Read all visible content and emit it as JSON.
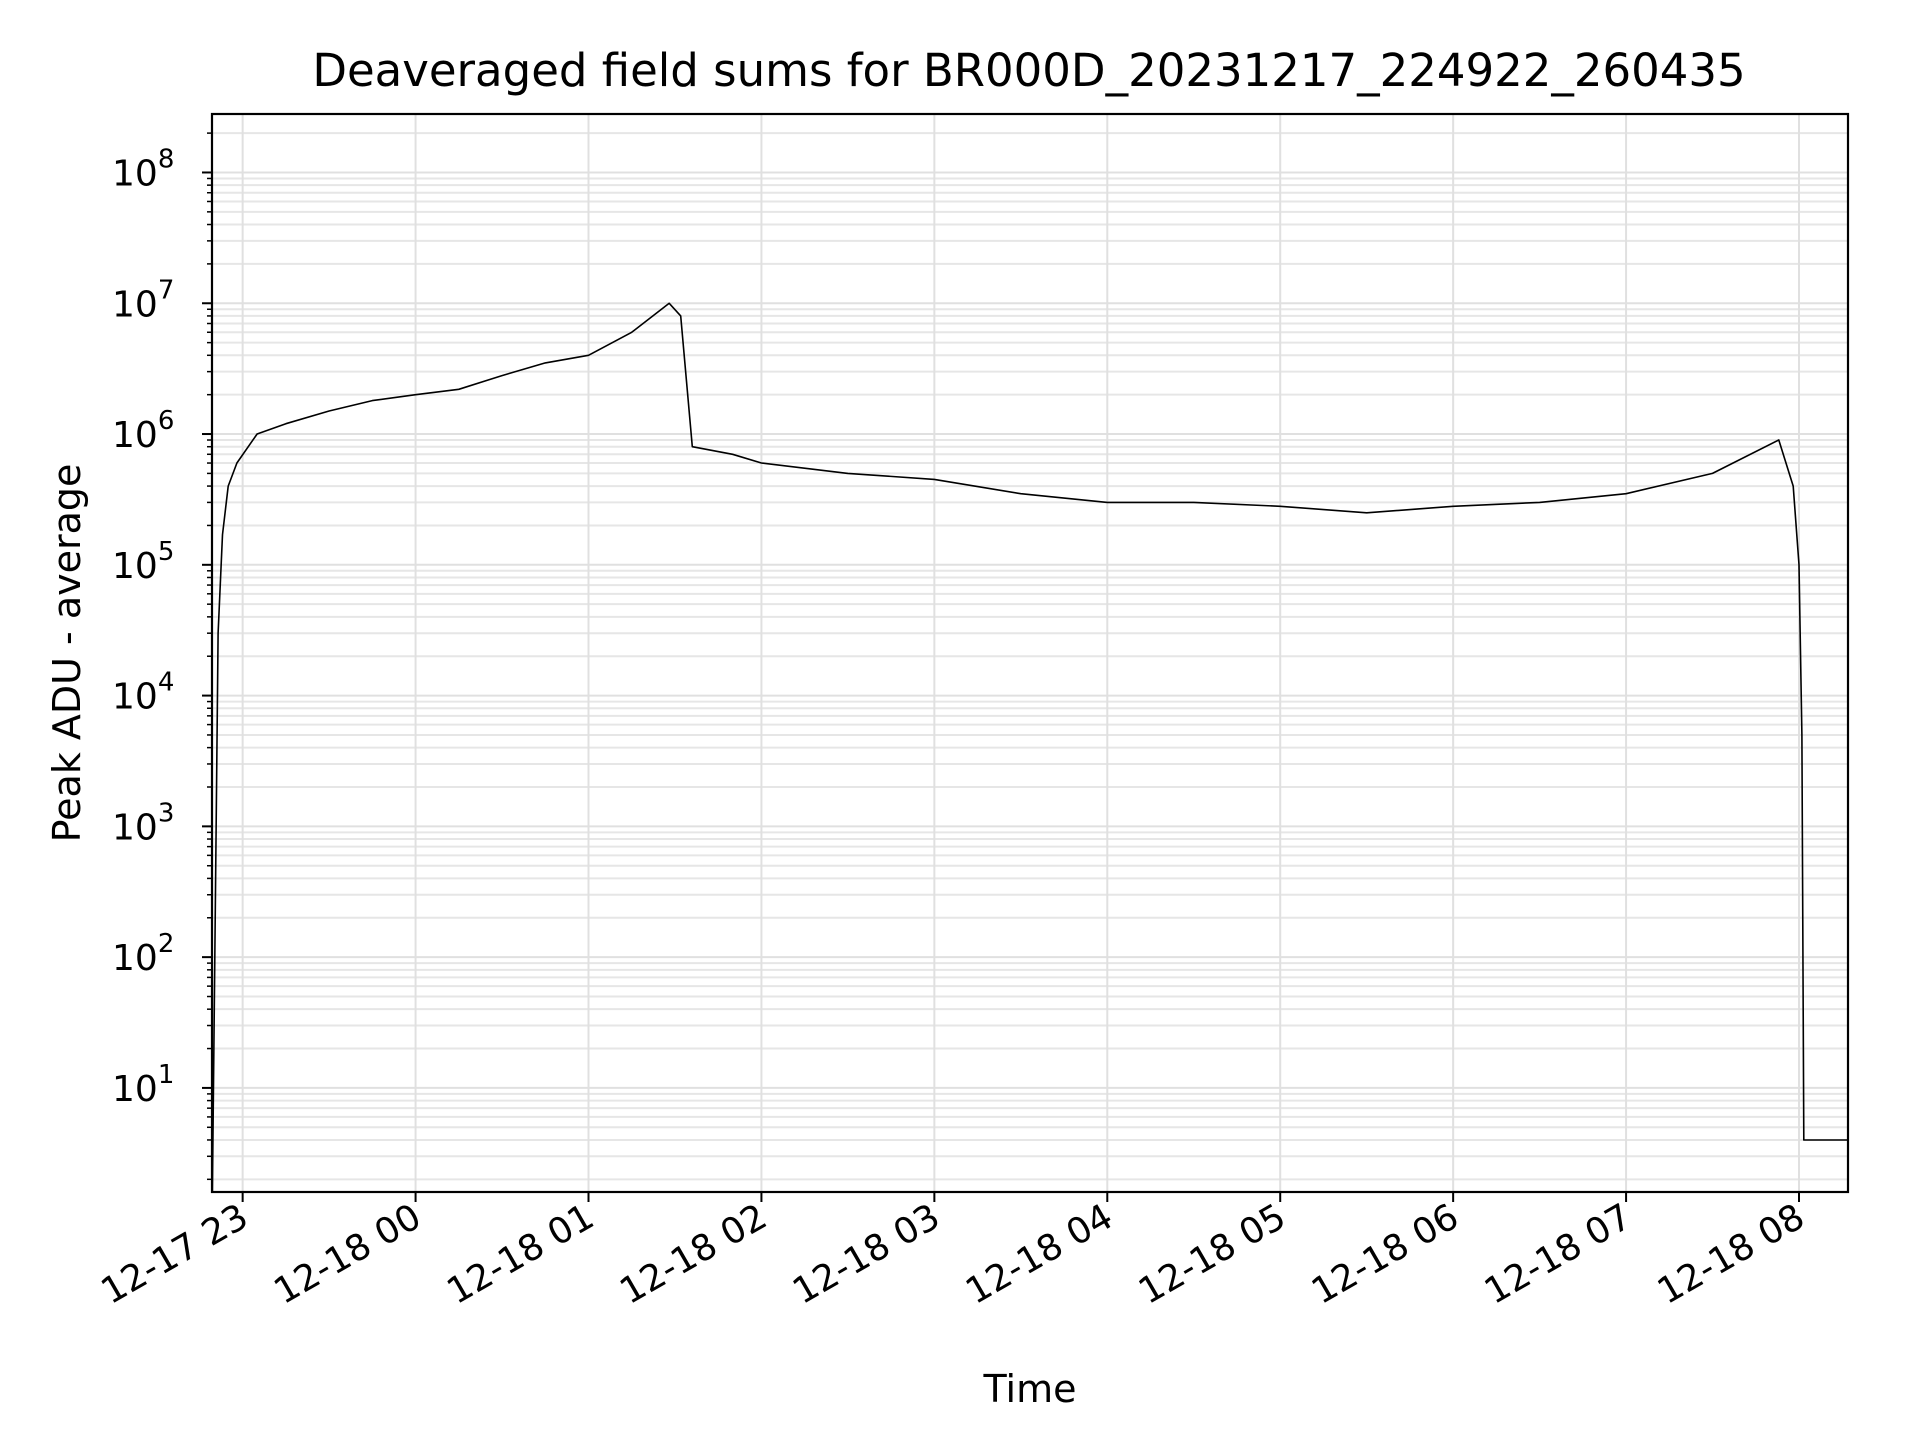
{
  "chart_data": {
    "type": "line",
    "title": "Deaveraged field sums for BR000D_20231217_224922_260435",
    "xlabel": "Time",
    "ylabel": "Peak ADU - average",
    "yscale": "log",
    "ylim": [
      1.6,
      280000000
    ],
    "xlim": [
      "2023-12-17 22:49:22",
      "2023-12-18 08:17:00"
    ],
    "grid": "major and minor",
    "line_color": "#000000",
    "xticks": [
      {
        "label": "12-17 23",
        "t": "2023-12-17 23:00"
      },
      {
        "label": "12-18 00",
        "t": "2023-12-18 00:00"
      },
      {
        "label": "12-18 01",
        "t": "2023-12-18 01:00"
      },
      {
        "label": "12-18 02",
        "t": "2023-12-18 02:00"
      },
      {
        "label": "12-18 03",
        "t": "2023-12-18 03:00"
      },
      {
        "label": "12-18 04",
        "t": "2023-12-18 04:00"
      },
      {
        "label": "12-18 05",
        "t": "2023-12-18 05:00"
      },
      {
        "label": "12-18 06",
        "t": "2023-12-18 06:00"
      },
      {
        "label": "12-18 07",
        "t": "2023-12-18 07:00"
      },
      {
        "label": "12-18 08",
        "t": "2023-12-18 08:00"
      }
    ],
    "yticks": [
      {
        "base": "10",
        "exp": "1",
        "value": 10
      },
      {
        "base": "10",
        "exp": "2",
        "value": 100
      },
      {
        "base": "10",
        "exp": "3",
        "value": 1000
      },
      {
        "base": "10",
        "exp": "4",
        "value": 10000
      },
      {
        "base": "10",
        "exp": "5",
        "value": 100000
      },
      {
        "base": "10",
        "exp": "6",
        "value": 1000000
      },
      {
        "base": "10",
        "exp": "7",
        "value": 10000000
      },
      {
        "base": "10",
        "exp": "8",
        "value": 100000000
      }
    ],
    "series": [
      {
        "color": "#000000",
        "points": [
          [
            "2023-12-17 22:49:30",
            1.6
          ],
          [
            "2023-12-17 22:50:30",
            230
          ],
          [
            "2023-12-17 22:51:30",
            30000
          ],
          [
            "2023-12-17 22:53:00",
            170000
          ],
          [
            "2023-12-17 22:55:00",
            400000
          ],
          [
            "2023-12-17 22:58:00",
            600000
          ],
          [
            "2023-12-17 23:05:00",
            1000000
          ],
          [
            "2023-12-17 23:15:00",
            1200000
          ],
          [
            "2023-12-17 23:30:00",
            1500000
          ],
          [
            "2023-12-17 23:45:00",
            1800000
          ],
          [
            "2023-12-18 00:00:00",
            2000000
          ],
          [
            "2023-12-18 00:15:00",
            2200000
          ],
          [
            "2023-12-18 00:30:00",
            2800000
          ],
          [
            "2023-12-18 00:45:00",
            3500000
          ],
          [
            "2023-12-18 01:00:00",
            4000000
          ],
          [
            "2023-12-18 01:15:00",
            6000000
          ],
          [
            "2023-12-18 01:28:00",
            10000000
          ],
          [
            "2023-12-18 01:32:00",
            8000000
          ],
          [
            "2023-12-18 01:36:00",
            800000
          ],
          [
            "2023-12-18 01:50:00",
            700000
          ],
          [
            "2023-12-18 02:00:00",
            600000
          ],
          [
            "2023-12-18 02:30:00",
            500000
          ],
          [
            "2023-12-18 03:00:00",
            450000
          ],
          [
            "2023-12-18 03:30:00",
            350000
          ],
          [
            "2023-12-18 04:00:00",
            300000
          ],
          [
            "2023-12-18 04:30:00",
            300000
          ],
          [
            "2023-12-18 05:00:00",
            280000
          ],
          [
            "2023-12-18 05:30:00",
            250000
          ],
          [
            "2023-12-18 06:00:00",
            280000
          ],
          [
            "2023-12-18 06:30:00",
            300000
          ],
          [
            "2023-12-18 07:00:00",
            350000
          ],
          [
            "2023-12-18 07:30:00",
            500000
          ],
          [
            "2023-12-18 07:53:00",
            900000
          ],
          [
            "2023-12-18 07:58:00",
            400000
          ],
          [
            "2023-12-18 08:00:00",
            100000
          ],
          [
            "2023-12-18 08:01:00",
            5000
          ],
          [
            "2023-12-18 08:01:40",
            4
          ],
          [
            "2023-12-18 08:17:00",
            4
          ]
        ]
      }
    ]
  }
}
